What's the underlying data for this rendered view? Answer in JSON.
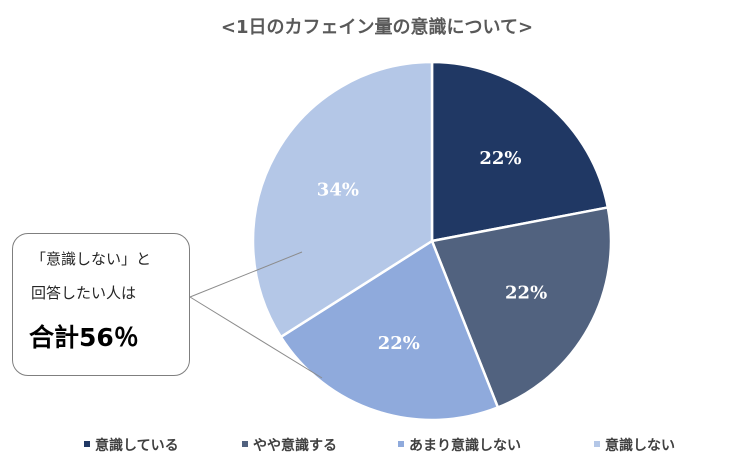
{
  "chart_data": {
    "type": "pie",
    "title": "<1日のカフェイン量の意識について>",
    "categories": [
      "意識している",
      "やや意識する",
      "あまり意識しない",
      "意識しない"
    ],
    "values": [
      22,
      22,
      22,
      34
    ],
    "labels": [
      "22%",
      "22%",
      "22%",
      "34%"
    ],
    "colors": [
      "#203864",
      "#51627f",
      "#8faadc",
      "#b4c7e7"
    ],
    "legend_position": "bottom"
  },
  "callout": {
    "line1": "「意識しない」と",
    "line2": "回答したい人は",
    "highlight": "合計56％"
  }
}
